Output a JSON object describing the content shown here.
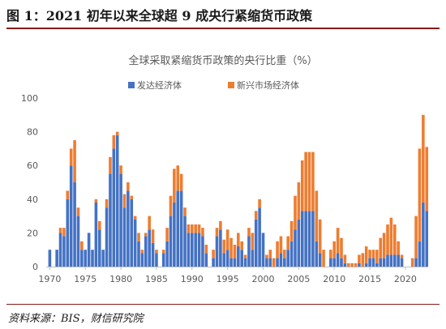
{
  "figure": {
    "title": "图 1：2021 初年以来全球超 9 成央行紧缩货币政策",
    "source": "资料来源：BIS，财信研究院"
  },
  "colors": {
    "developed": "#4472c4",
    "emerging": "#ed7d31",
    "axis": "#bfbfbf",
    "text": "#595959",
    "accent_rule": "#8a1a1a"
  },
  "chart_data": {
    "type": "bar",
    "stacked": true,
    "title": "全球采取紧缩货币政策的央行比重（%）",
    "xlabel": "",
    "ylabel": "",
    "ylim": [
      0,
      100
    ],
    "yticks": [
      0,
      20,
      40,
      60,
      80,
      100
    ],
    "xlim": [
      1969.5,
      2023.2
    ],
    "xticks": [
      1970,
      1975,
      1980,
      1985,
      1990,
      1995,
      2000,
      2005,
      2010,
      2015,
      2020
    ],
    "grid": false,
    "legend": "top",
    "x": [
      1970.0,
      1970.5,
      1971.0,
      1971.5,
      1972.0,
      1972.5,
      1973.0,
      1973.5,
      1974.0,
      1974.5,
      1975.0,
      1975.5,
      1976.0,
      1976.5,
      1977.0,
      1977.5,
      1978.0,
      1978.5,
      1979.0,
      1979.5,
      1980.0,
      1980.5,
      1981.0,
      1981.5,
      1982.0,
      1982.5,
      1983.0,
      1983.5,
      1984.0,
      1984.5,
      1985.0,
      1985.5,
      1986.0,
      1986.5,
      1987.0,
      1987.5,
      1988.0,
      1988.5,
      1989.0,
      1989.5,
      1990.0,
      1990.5,
      1991.0,
      1991.5,
      1992.0,
      1992.5,
      1993.0,
      1993.5,
      1994.0,
      1994.5,
      1995.0,
      1995.5,
      1996.0,
      1996.5,
      1997.0,
      1997.5,
      1998.0,
      1998.5,
      1999.0,
      1999.5,
      2000.0,
      2000.5,
      2001.0,
      2001.5,
      2002.0,
      2002.5,
      2003.0,
      2003.5,
      2004.0,
      2004.5,
      2005.0,
      2005.5,
      2006.0,
      2006.5,
      2007.0,
      2007.5,
      2008.0,
      2008.5,
      2009.0,
      2009.5,
      2010.0,
      2010.5,
      2011.0,
      2011.5,
      2012.0,
      2012.5,
      2013.0,
      2013.5,
      2014.0,
      2014.5,
      2015.0,
      2015.5,
      2016.0,
      2016.5,
      2017.0,
      2017.5,
      2018.0,
      2018.5,
      2019.0,
      2019.5,
      2020.0,
      2020.5,
      2021.0,
      2021.5,
      2022.0,
      2022.5,
      2023.0
    ],
    "series": [
      {
        "name": "发达经济体",
        "values": [
          10,
          0,
          10,
          20,
          18,
          40,
          60,
          50,
          30,
          10,
          10,
          20,
          10,
          38,
          22,
          10,
          35,
          55,
          70,
          78,
          55,
          35,
          45,
          40,
          28,
          15,
          8,
          18,
          22,
          14,
          8,
          0,
          8,
          15,
          30,
          38,
          45,
          45,
          30,
          20,
          20,
          20,
          20,
          18,
          8,
          0,
          5,
          18,
          22,
          8,
          10,
          5,
          5,
          12,
          10,
          5,
          18,
          10,
          28,
          35,
          20,
          5,
          5,
          0,
          5,
          8,
          5,
          10,
          15,
          22,
          28,
          33,
          33,
          33,
          33,
          15,
          8,
          0,
          0,
          5,
          5,
          8,
          5,
          2,
          0,
          0,
          0,
          2,
          0,
          2,
          5,
          5,
          2,
          5,
          5,
          7,
          7,
          7,
          7,
          5,
          0,
          0,
          0,
          5,
          15,
          38,
          33
        ]
      },
      {
        "name": "新兴市场经济体",
        "values": [
          0,
          0,
          0,
          3,
          5,
          5,
          10,
          25,
          5,
          5,
          0,
          0,
          0,
          2,
          5,
          0,
          5,
          10,
          8,
          2,
          5,
          8,
          5,
          2,
          2,
          5,
          2,
          2,
          8,
          8,
          2,
          0,
          2,
          8,
          12,
          20,
          15,
          10,
          5,
          5,
          5,
          5,
          5,
          5,
          5,
          0,
          5,
          5,
          5,
          8,
          12,
          12,
          8,
          8,
          5,
          2,
          5,
          10,
          5,
          5,
          0,
          2,
          5,
          5,
          10,
          10,
          5,
          8,
          12,
          20,
          22,
          30,
          35,
          35,
          35,
          30,
          20,
          10,
          0,
          5,
          10,
          15,
          12,
          5,
          2,
          2,
          2,
          5,
          8,
          10,
          5,
          5,
          8,
          12,
          15,
          18,
          22,
          18,
          8,
          2,
          0,
          0,
          5,
          25,
          55,
          52,
          38
        ]
      }
    ]
  }
}
